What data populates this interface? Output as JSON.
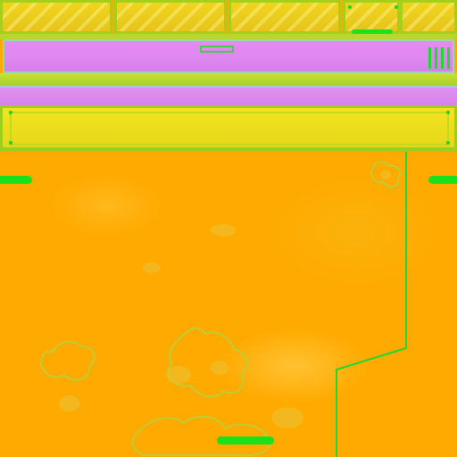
{
  "scene": {
    "type": "game texture atlas",
    "palette": {
      "background": "#f6b616",
      "panel_yellow": "#ecd11c",
      "panel_border": "#a6cf1c",
      "band_violet": "#e08af0",
      "accent_green": "#19e21b"
    }
  },
  "top_row": {
    "panels": [
      {
        "name": "panel-1"
      },
      {
        "name": "panel-2"
      },
      {
        "name": "panel-3"
      },
      {
        "name": "panel-4"
      },
      {
        "name": "panel-5"
      }
    ]
  },
  "upper_band": {
    "vent_icon": "vent-lines-icon",
    "slot_icon": "slot-indicator-icon"
  },
  "markers": {
    "left_marker": "green-bar",
    "right_marker": "green-bar",
    "bottom_marker": "green-bar"
  }
}
